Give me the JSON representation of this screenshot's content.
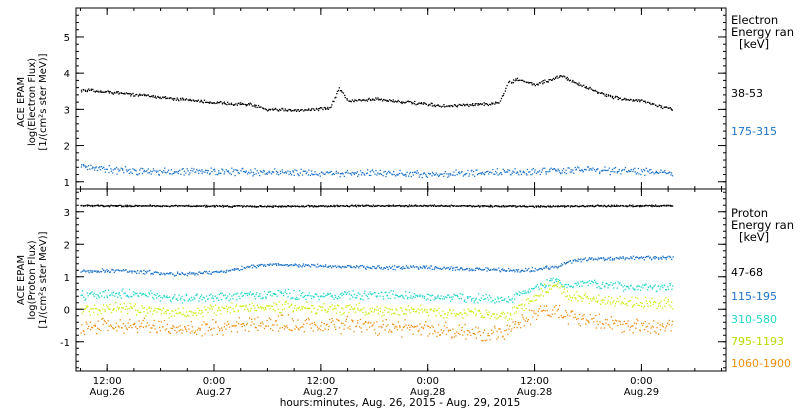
{
  "x_axis": {
    "title": "hours:minutes, Aug. 26, 2015 - Aug. 29, 2015",
    "ticks": [
      {
        "hour": 12,
        "time": "12:00",
        "date": "Aug.26"
      },
      {
        "hour": 24,
        "time": "0:00",
        "date": "Aug.27"
      },
      {
        "hour": 36,
        "time": "12:00",
        "date": "Aug.27"
      },
      {
        "hour": 48,
        "time": "0:00",
        "date": "Aug.28"
      },
      {
        "hour": 60,
        "time": "12:00",
        "date": "Aug.28"
      },
      {
        "hour": 72,
        "time": "0:00",
        "date": "Aug.29"
      }
    ]
  },
  "electron_panel": {
    "ylabel": [
      "ACE EPAM",
      "log(Electron Flux)",
      "[1/(cm²s ster MeV)]"
    ],
    "legend_title": [
      "Electron",
      "Energy ran",
      "[keV]"
    ],
    "ylim": [
      0.8,
      5.8
    ],
    "yticks": [
      "1",
      "2",
      "3",
      "4",
      "5"
    ],
    "series": [
      {
        "name": "38-53",
        "color": "#000000"
      },
      {
        "name": "175-315",
        "color": "#1e74c8"
      }
    ]
  },
  "proton_panel": {
    "ylabel": [
      "ACE EPAM",
      "log(Proton Flux)",
      "[1/(cm²s ster MeV)]"
    ],
    "legend_title": [
      "Proton",
      "Energy ran",
      "[keV]"
    ],
    "ylim": [
      -1.9,
      3.7
    ],
    "yticks": [
      "-1",
      "0",
      "1",
      "2",
      "3"
    ],
    "series": [
      {
        "name": "47-68",
        "color": "#000000"
      },
      {
        "name": "115-195",
        "color": "#1e74c8"
      },
      {
        "name": "310-580",
        "color": "#22d6c8"
      },
      {
        "name": "795-1193",
        "color": "#c8ee10"
      },
      {
        "name": "1060-1900",
        "color": "#ee8e10"
      }
    ]
  },
  "chart_data": [
    {
      "type": "scatter",
      "title": "",
      "xlabel": "hours:minutes, Aug. 26, 2015 - Aug. 29, 2015",
      "ylabel": "log(Electron Flux)",
      "x_unit": "hours since Aug.26 0:00",
      "xlim": [
        8.5,
        81.5
      ],
      "ylim": [
        0.8,
        5.8
      ],
      "series": [
        {
          "name": "38-53",
          "x": [
            9,
            12,
            18,
            24,
            28,
            30,
            34,
            37,
            38,
            39,
            42,
            46,
            50,
            54,
            56,
            57,
            58,
            60,
            62,
            63,
            64,
            66,
            68,
            70,
            72,
            74,
            75.5
          ],
          "y": [
            3.55,
            3.5,
            3.35,
            3.2,
            3.15,
            3.0,
            3.0,
            3.05,
            3.6,
            3.25,
            3.3,
            3.2,
            3.1,
            3.15,
            3.2,
            3.75,
            3.85,
            3.7,
            3.85,
            3.95,
            3.8,
            3.6,
            3.4,
            3.3,
            3.25,
            3.1,
            3.0
          ]
        },
        {
          "name": "175-315",
          "x": [
            9,
            12,
            18,
            24,
            30,
            36,
            42,
            48,
            54,
            60,
            66,
            72,
            75.5
          ],
          "y": [
            1.45,
            1.35,
            1.3,
            1.3,
            1.28,
            1.25,
            1.25,
            1.22,
            1.25,
            1.3,
            1.35,
            1.3,
            1.25
          ]
        }
      ]
    },
    {
      "type": "scatter",
      "title": "",
      "xlabel": "hours:minutes, Aug. 26, 2015 - Aug. 29, 2015",
      "ylabel": "log(Proton Flux)",
      "x_unit": "hours since Aug.26 0:00",
      "xlim": [
        8.5,
        81.5
      ],
      "ylim": [
        -1.9,
        3.7
      ],
      "series": [
        {
          "name": "47-68",
          "x": [
            9,
            20,
            30,
            40,
            50,
            60,
            70,
            75.5
          ],
          "y": [
            3.2,
            3.2,
            3.18,
            3.2,
            3.2,
            3.18,
            3.2,
            3.2
          ]
        },
        {
          "name": "115-195",
          "x": [
            9,
            14,
            20,
            24,
            30,
            36,
            42,
            48,
            54,
            58,
            62,
            64,
            66,
            70,
            75.5
          ],
          "y": [
            1.2,
            1.2,
            1.1,
            1.15,
            1.4,
            1.35,
            1.3,
            1.3,
            1.25,
            1.2,
            1.3,
            1.5,
            1.55,
            1.6,
            1.6
          ]
        },
        {
          "name": "310-580",
          "x": [
            9,
            14,
            20,
            24,
            30,
            36,
            42,
            48,
            54,
            57,
            59,
            62,
            64,
            66,
            70,
            75.5
          ],
          "y": [
            0.45,
            0.5,
            0.35,
            0.4,
            0.5,
            0.45,
            0.45,
            0.4,
            0.35,
            0.3,
            0.55,
            0.9,
            0.75,
            0.8,
            0.7,
            0.7
          ]
        },
        {
          "name": "795-1193",
          "x": [
            9,
            14,
            20,
            24,
            30,
            36,
            42,
            48,
            54,
            57,
            59,
            61,
            62.5,
            64,
            66,
            70,
            75.5
          ],
          "y": [
            0.0,
            0.05,
            -0.1,
            0.0,
            0.1,
            0.05,
            0.0,
            -0.05,
            -0.1,
            -0.2,
            0.2,
            0.6,
            0.75,
            0.4,
            0.35,
            0.25,
            0.2
          ]
        },
        {
          "name": "1060-1900",
          "x": [
            9,
            14,
            20,
            24,
            30,
            36,
            42,
            48,
            52,
            56,
            59,
            61,
            64,
            66,
            70,
            75.5
          ],
          "y": [
            -0.55,
            -0.5,
            -0.6,
            -0.55,
            -0.4,
            -0.45,
            -0.5,
            -0.6,
            -0.7,
            -0.75,
            -0.3,
            0.0,
            -0.2,
            -0.3,
            -0.45,
            -0.5
          ]
        }
      ]
    }
  ]
}
